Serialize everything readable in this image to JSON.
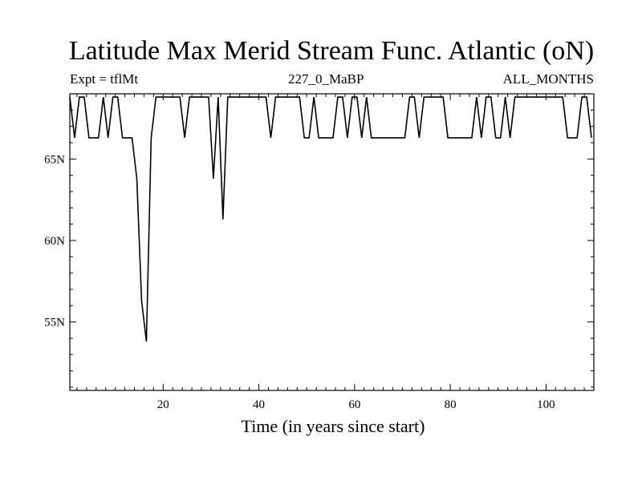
{
  "header": {
    "title": "Latitude Max Merid Stream Func. Atlantic (oN)",
    "left": "Expt = tflMt",
    "center": "227_0_MaBP",
    "right": "ALL_MONTHS"
  },
  "chart_data": {
    "type": "line",
    "xlabel": "Time (in years since start)",
    "ylabel": "",
    "xlim": [
      0.5,
      110
    ],
    "ylim": [
      50.8,
      69
    ],
    "x_ticks": [
      {
        "value": 20,
        "label": "20"
      },
      {
        "value": 40,
        "label": "40"
      },
      {
        "value": 60,
        "label": "60"
      },
      {
        "value": 80,
        "label": "80"
      },
      {
        "value": 100,
        "label": "100"
      }
    ],
    "y_ticks": [
      {
        "value": 55,
        "label": "55N"
      },
      {
        "value": 60,
        "label": "60N"
      },
      {
        "value": 65,
        "label": "65N"
      }
    ],
    "series": [
      {
        "color": "#000000",
        "x": [
          0.5,
          1.5,
          2.5,
          3.5,
          4.5,
          5.5,
          6.5,
          7.5,
          8.5,
          9.5,
          10.5,
          11.5,
          12.5,
          13.5,
          14.5,
          15.5,
          16.5,
          17.5,
          18.5,
          19.5,
          20.5,
          21.5,
          22.5,
          23.5,
          24.5,
          25.5,
          26.5,
          27.5,
          28.5,
          29.5,
          30.5,
          31.5,
          32.5,
          33.5,
          34.5,
          35.5,
          36.5,
          37.5,
          38.5,
          39.5,
          40.5,
          41.5,
          42.5,
          43.5,
          44.5,
          45.5,
          46.5,
          47.5,
          48.5,
          49.5,
          50.5,
          51.5,
          52.5,
          53.5,
          54.5,
          55.5,
          56.5,
          57.5,
          58.5,
          59.5,
          60.5,
          61.5,
          62.5,
          63.5,
          64.5,
          65.5,
          66.5,
          67.5,
          68.5,
          69.5,
          70.5,
          71.5,
          72.5,
          73.5,
          74.5,
          75.5,
          76.5,
          77.5,
          78.5,
          79.5,
          80.5,
          81.5,
          82.5,
          83.5,
          84.5,
          85.5,
          86.5,
          87.5,
          88.5,
          89.5,
          90.5,
          91.5,
          92.5,
          93.5,
          94.5,
          95.5,
          96.5,
          97.5,
          98.5,
          99.5,
          100.5,
          101.5,
          102.5,
          103.5,
          104.5,
          105.5,
          106.5,
          107.5,
          108.5,
          109.5
        ],
        "y": [
          68.8,
          66.3,
          68.8,
          68.8,
          66.3,
          66.3,
          66.3,
          68.8,
          66.3,
          68.8,
          68.8,
          66.3,
          66.3,
          66.3,
          63.8,
          56.3,
          53.8,
          66.3,
          68.8,
          68.8,
          68.8,
          68.8,
          68.8,
          68.8,
          66.3,
          68.8,
          68.8,
          68.8,
          68.8,
          68.8,
          63.8,
          68.8,
          61.3,
          68.8,
          68.8,
          68.8,
          68.8,
          68.8,
          68.8,
          68.8,
          68.8,
          68.8,
          66.3,
          68.8,
          68.8,
          68.8,
          68.8,
          68.8,
          68.8,
          66.3,
          66.3,
          68.8,
          66.3,
          66.3,
          66.3,
          66.3,
          68.8,
          68.8,
          66.3,
          68.8,
          68.8,
          66.3,
          68.8,
          66.3,
          66.3,
          66.3,
          66.3,
          66.3,
          66.3,
          66.3,
          66.3,
          68.8,
          68.8,
          66.3,
          68.8,
          68.8,
          68.8,
          68.8,
          68.8,
          66.3,
          66.3,
          66.3,
          66.3,
          66.3,
          66.3,
          68.8,
          66.3,
          68.8,
          68.8,
          66.3,
          66.3,
          68.8,
          66.3,
          68.8,
          68.8,
          68.8,
          68.8,
          68.8,
          68.8,
          68.8,
          68.8,
          68.8,
          68.8,
          68.8,
          66.3,
          66.3,
          66.3,
          68.8,
          68.8,
          66.3
        ]
      }
    ]
  }
}
